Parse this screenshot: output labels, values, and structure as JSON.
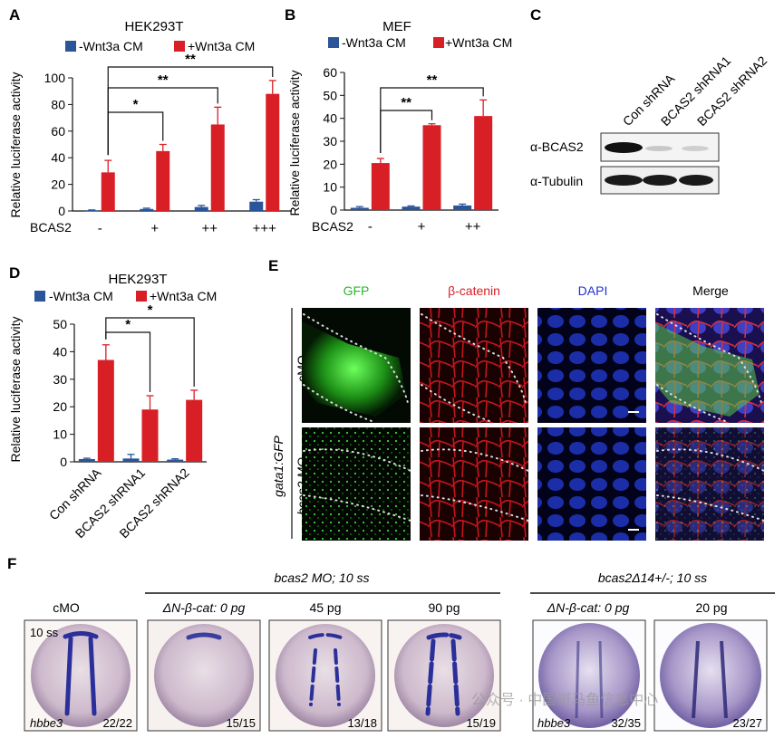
{
  "panel_labels": [
    "A",
    "B",
    "C",
    "D",
    "E",
    "F"
  ],
  "colors": {
    "minus": "#2a5599",
    "plus": "#d91f26",
    "dark": "#222222"
  },
  "legend": {
    "minus": "-Wnt3a CM",
    "plus": "+Wnt3a CM"
  },
  "chart_data": [
    {
      "panel": "A",
      "type": "bar",
      "title": "HEK293T",
      "ylabel": "Relative luciferase activity",
      "ylim": [
        0,
        100
      ],
      "yticks": [
        "0",
        "20",
        "40",
        "60",
        "80",
        "100"
      ],
      "xlabel_row_label": "BCAS2",
      "categories": [
        "-",
        "+",
        "++",
        "+++"
      ],
      "series": [
        {
          "name": "-Wnt3a CM",
          "values": [
            0.5,
            1.5,
            3,
            7
          ],
          "errors": [
            0.3,
            0.6,
            1.2,
            1.5
          ]
        },
        {
          "name": "+Wnt3a CM",
          "values": [
            29,
            45,
            65,
            88
          ],
          "errors": [
            9,
            5,
            13,
            10
          ]
        }
      ],
      "sig_marks": [
        "*",
        "**",
        "**"
      ]
    },
    {
      "panel": "B",
      "type": "bar",
      "title": "MEF",
      "ylabel": "Relative luciferase activity",
      "ylim": [
        0,
        60
      ],
      "yticks": [
        "0",
        "10",
        "20",
        "30",
        "40",
        "50",
        "60"
      ],
      "xlabel_row_label": "BCAS2",
      "categories": [
        "-",
        "+",
        "++"
      ],
      "series": [
        {
          "name": "-Wnt3a CM",
          "values": [
            1,
            1.5,
            2
          ],
          "errors": [
            0.5,
            0.3,
            0.6
          ]
        },
        {
          "name": "+Wnt3a CM",
          "values": [
            20.5,
            37,
            41
          ],
          "errors": [
            2,
            0.6,
            7
          ]
        }
      ],
      "sig_marks": [
        "**",
        "**"
      ]
    },
    {
      "panel": "D",
      "type": "bar",
      "title": "HEK293T",
      "ylabel": "Relative luciferase activity",
      "ylim": [
        0,
        50
      ],
      "yticks": [
        "0",
        "10",
        "20",
        "30",
        "40",
        "50"
      ],
      "categories": [
        "Con shRNA",
        "BCAS2 shRNA1",
        "BCAS2 shRNA2"
      ],
      "series": [
        {
          "name": "-Wnt3a CM",
          "values": [
            1,
            1.2,
            0.8
          ],
          "errors": [
            0.3,
            1.5,
            0.3
          ]
        },
        {
          "name": "+Wnt3a CM",
          "values": [
            37,
            19,
            22.5
          ],
          "errors": [
            5.5,
            5,
            3.5
          ]
        }
      ],
      "sig_marks": [
        "*",
        "*"
      ]
    }
  ],
  "western": {
    "lanes": [
      "Con shRNA",
      "BCAS2 shRNA1",
      "BCAS2 shRNA2"
    ],
    "rows": [
      "α-BCAS2",
      "α-Tubulin"
    ]
  },
  "micrographs": {
    "columns": [
      "GFP",
      "β-catenin",
      "DAPI",
      "Merge"
    ],
    "rows": [
      "cMO",
      "bcas2 MO"
    ],
    "side_label": "gata1:GFP"
  },
  "embryos": {
    "group1_title": "bcas2 MO; 10 ss",
    "group2_title": "bcas2Δ14+/-; 10 ss",
    "panels": [
      {
        "top": "cMO",
        "stage": "10 ss",
        "gene": "hbbe3",
        "count": "22/22"
      },
      {
        "top": "ΔN-β-cat: 0 pg",
        "count": "15/15"
      },
      {
        "top": "45 pg",
        "count": "13/18"
      },
      {
        "top": "90 pg",
        "count": "15/19"
      },
      {
        "top": "ΔN-β-cat: 0 pg",
        "gene": "hbbe3",
        "count": "32/35"
      },
      {
        "top": "20 pg",
        "count": "23/27"
      }
    ]
  },
  "watermark": "公众号 · 中国斑马鱼信息中心"
}
